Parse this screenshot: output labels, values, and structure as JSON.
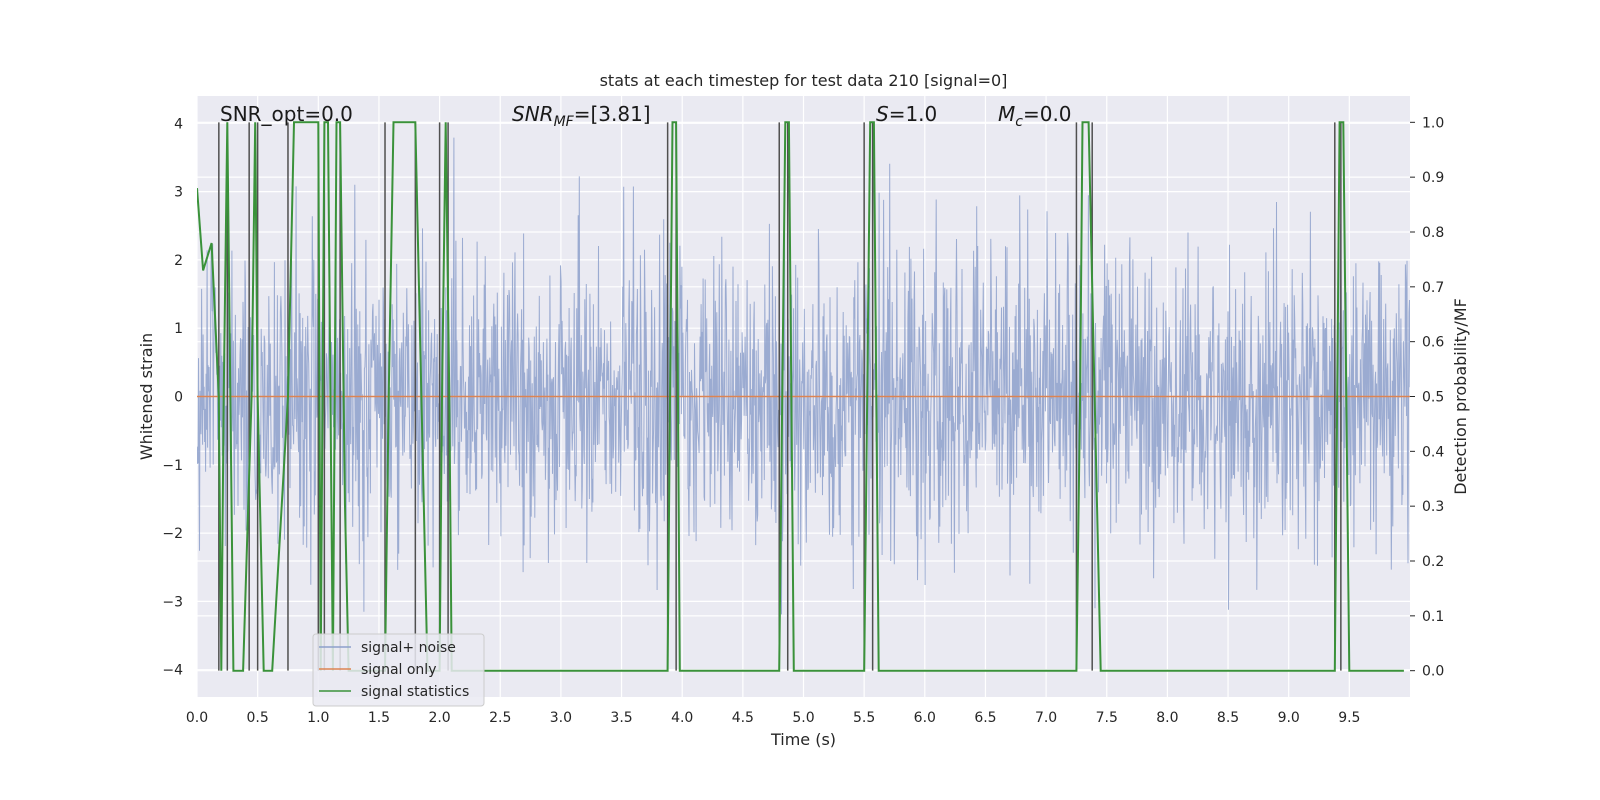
{
  "chart_data": {
    "type": "line",
    "title": "stats at each timestep for test data 210 [signal=0]",
    "xlabel": "Time (s)",
    "ylabel": "Whitened strain",
    "y2label": "Detection probability/MF",
    "xlim": [
      0.0,
      10.0
    ],
    "ylim": [
      -4.4,
      4.4
    ],
    "y2lim": [
      -0.048,
      1.048
    ],
    "xticks": [
      "0.0",
      "0.5",
      "1.0",
      "1.5",
      "2.0",
      "2.5",
      "3.0",
      "3.5",
      "4.0",
      "4.5",
      "5.0",
      "5.5",
      "6.0",
      "6.5",
      "7.0",
      "7.5",
      "8.0",
      "8.5",
      "9.0",
      "9.5"
    ],
    "yticks": [
      "−4",
      "−3",
      "−2",
      "−1",
      "0",
      "1",
      "2",
      "3",
      "4"
    ],
    "y2ticks": [
      "0.0",
      "0.1",
      "0.2",
      "0.3",
      "0.4",
      "0.5",
      "0.6",
      "0.7",
      "0.8",
      "0.9",
      "1.0"
    ],
    "grid": true,
    "legend_position": "lower-left",
    "annotations": {
      "snr_opt": "SNR_opt=0.0",
      "snr_mf_label": "SNR",
      "snr_mf_sub": "MF",
      "snr_mf_value": "=[3.81]",
      "s_label": "S",
      "s_value": "=1.0",
      "mc_label": "M",
      "mc_sub": "c",
      "mc_value": "=0.0"
    },
    "series": [
      {
        "name": "signal+ noise",
        "axis": "left",
        "color": "#8da0cb",
        "noise_std": 1.0
      },
      {
        "name": "signal only",
        "axis": "left",
        "color": "#dd8452",
        "values": 0
      },
      {
        "name": "signal statistics",
        "axis": "right",
        "color": "#3a923a",
        "x": [
          0.0,
          0.05,
          0.12,
          0.18,
          0.2,
          0.22,
          0.25,
          0.3,
          0.38,
          0.45,
          0.48,
          0.5,
          0.55,
          0.62,
          0.75,
          0.8,
          0.82,
          1.0,
          1.02,
          1.05,
          1.08,
          1.12,
          1.15,
          1.18,
          1.22,
          1.25,
          1.55,
          1.58,
          1.62,
          1.8,
          1.85,
          1.9,
          2.0,
          2.02,
          2.05,
          2.08,
          2.1,
          2.13,
          3.88,
          3.92,
          3.95,
          3.98,
          4.8,
          4.85,
          4.88,
          4.92,
          5.5,
          5.55,
          5.58,
          5.62,
          7.25,
          7.28,
          7.3,
          7.35,
          7.4,
          7.45,
          9.38,
          9.42,
          9.45,
          9.5,
          9.95
        ],
        "values": [
          0.88,
          0.73,
          0.78,
          0.5,
          0.0,
          0.5,
          1.0,
          0.0,
          0.0,
          0.5,
          1.0,
          0.5,
          0.0,
          0.0,
          0.5,
          1.0,
          1.0,
          1.0,
          0.0,
          1.0,
          1.0,
          0.0,
          1.0,
          1.0,
          0.3,
          0.0,
          0.0,
          0.5,
          1.0,
          1.0,
          0.5,
          0.0,
          0.0,
          0.5,
          1.0,
          0.5,
          0.0,
          0.0,
          0.0,
          1.0,
          1.0,
          0.0,
          0.0,
          1.0,
          1.0,
          0.0,
          0.0,
          1.0,
          1.0,
          0.0,
          0.0,
          0.5,
          1.0,
          1.0,
          0.5,
          0.0,
          0.0,
          1.0,
          1.0,
          0.0,
          0.0
        ]
      }
    ],
    "vlines": [
      0.18,
      0.25,
      0.43,
      0.5,
      0.75,
      1.0,
      1.05,
      1.18,
      1.55,
      1.8,
      2.0,
      2.07,
      3.88,
      3.95,
      4.8,
      4.87,
      5.5,
      5.57,
      7.25,
      7.38,
      9.38,
      9.43
    ],
    "vline_color": "#505050"
  }
}
